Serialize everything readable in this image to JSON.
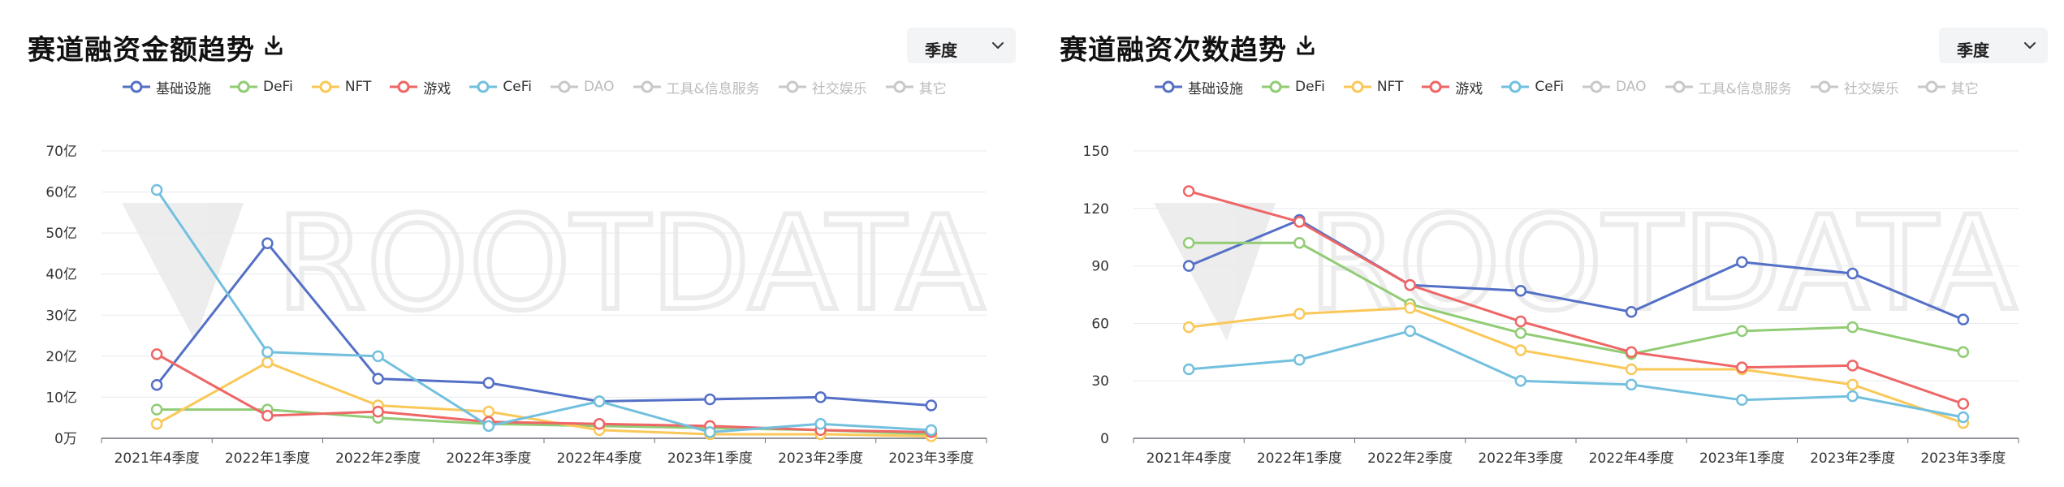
{
  "colors": {
    "基础设施": "#5470c6",
    "DeFi": "#91cc75",
    "NFT": "#fac858",
    "游戏": "#ee6666",
    "CeFi": "#73c0de",
    "disabled": "#c8c8c8"
  },
  "icons": {
    "download": "download-icon",
    "chevron": "chevron-down-icon",
    "legend": "legend-circle-line-icon"
  },
  "watermark": "ROOTDATA",
  "legend_items": [
    {
      "name": "基础设施",
      "active": true
    },
    {
      "name": "DeFi",
      "active": true
    },
    {
      "name": "NFT",
      "active": true
    },
    {
      "name": "游戏",
      "active": true
    },
    {
      "name": "CeFi",
      "active": true
    },
    {
      "name": "DAO",
      "active": false
    },
    {
      "name": "工具&信息服务",
      "active": false
    },
    {
      "name": "社交娱乐",
      "active": false
    },
    {
      "name": "其它",
      "active": false
    }
  ],
  "chart_data": [
    {
      "type": "line",
      "title": "赛道融资金额趋势",
      "period_select": "季度",
      "categories": [
        "2021年4季度",
        "2022年1季度",
        "2022年2季度",
        "2022年3季度",
        "2022年4季度",
        "2023年1季度",
        "2023年2季度",
        "2023年3季度"
      ],
      "ylim": [
        0,
        70
      ],
      "yticks": [
        0,
        10,
        20,
        30,
        40,
        50,
        60,
        70
      ],
      "ytick_labels": [
        "0万",
        "10亿",
        "20亿",
        "30亿",
        "40亿",
        "50亿",
        "60亿",
        "70亿"
      ],
      "grid": true,
      "legend_position": "top-left",
      "series": [
        {
          "name": "基础设施",
          "values": [
            13,
            47.5,
            14.5,
            13.5,
            9,
            9.5,
            10,
            8
          ]
        },
        {
          "name": "DeFi",
          "values": [
            7,
            7,
            5,
            3.5,
            3,
            2.5,
            2,
            1
          ]
        },
        {
          "name": "NFT",
          "values": [
            3.5,
            18.5,
            8,
            6.5,
            2,
            1,
            1,
            0.5
          ]
        },
        {
          "name": "游戏",
          "values": [
            20.5,
            5.5,
            6.5,
            4,
            3.5,
            3,
            2,
            1.5
          ]
        },
        {
          "name": "CeFi",
          "values": [
            60.5,
            21,
            20,
            3,
            9,
            1.5,
            3.5,
            2
          ]
        }
      ]
    },
    {
      "type": "line",
      "title": "赛道融资次数趋势",
      "period_select": "季度",
      "categories": [
        "2021年4季度",
        "2022年1季度",
        "2022年2季度",
        "2022年3季度",
        "2022年4季度",
        "2023年1季度",
        "2023年2季度",
        "2023年3季度"
      ],
      "ylim": [
        0,
        150
      ],
      "yticks": [
        0,
        30,
        60,
        90,
        120,
        150
      ],
      "ytick_labels": [
        "0",
        "30",
        "60",
        "90",
        "120",
        "150"
      ],
      "grid": true,
      "legend_position": "top-left",
      "series": [
        {
          "name": "基础设施",
          "values": [
            90,
            114,
            80,
            77,
            66,
            92,
            86,
            62
          ]
        },
        {
          "name": "DeFi",
          "values": [
            102,
            102,
            70,
            55,
            44,
            56,
            58,
            45
          ]
        },
        {
          "name": "NFT",
          "values": [
            58,
            65,
            68,
            46,
            36,
            36,
            28,
            8
          ]
        },
        {
          "name": "游戏",
          "values": [
            129,
            113,
            80,
            61,
            45,
            37,
            38,
            18
          ]
        },
        {
          "name": "CeFi",
          "values": [
            36,
            41,
            56,
            30,
            28,
            20,
            22,
            11
          ]
        }
      ]
    }
  ]
}
